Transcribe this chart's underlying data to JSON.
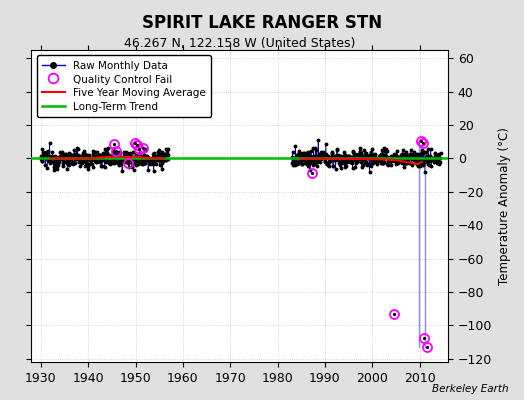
{
  "title": "SPIRIT LAKE RANGER STN",
  "subtitle": "46.267 N, 122.158 W (United States)",
  "ylabel": "Temperature Anomaly (°C)",
  "credit": "Berkeley Earth",
  "xlim": [
    1928,
    2016
  ],
  "ylim": [
    -122,
    65
  ],
  "yticks": [
    -120,
    -100,
    -80,
    -60,
    -40,
    -20,
    0,
    20,
    40,
    60
  ],
  "xticks": [
    1930,
    1940,
    1950,
    1960,
    1970,
    1980,
    1990,
    2000,
    2010
  ],
  "background_color": "#e0e0e0",
  "plot_bg_color": "#ffffff",
  "grid_color": "#c8c8c8",
  "raw_data_color": "#0000cc",
  "raw_dot_color": "#000000",
  "qc_fail_color": "#ff00ff",
  "moving_avg_color": "#ff0000",
  "trend_color": "#00bb00",
  "gap_line_color": "#8888ff",
  "seg1_start": 1930.0,
  "seg1_end": 1957.0,
  "seg2_start": 1983.0,
  "seg2_end": 2014.5,
  "noise_std": 2.8,
  "qc_fail_points_seg1": [
    [
      1945.4,
      8.5
    ],
    [
      1945.9,
      4.5
    ],
    [
      1948.3,
      -3.0
    ],
    [
      1949.8,
      9.5
    ],
    [
      1950.3,
      8.0
    ],
    [
      1950.8,
      5.5
    ],
    [
      1951.5,
      6.5
    ]
  ],
  "qc_fail_points_seg2": [
    [
      1987.3,
      -8.5
    ],
    [
      2004.5,
      -93.0
    ],
    [
      2010.3,
      10.5
    ],
    [
      2010.8,
      9.5
    ],
    [
      2011.0,
      -107.5
    ],
    [
      2011.5,
      -113.0
    ]
  ],
  "ma_x1": [
    1932,
    1935,
    1938,
    1941,
    1944,
    1946,
    1948,
    1950,
    1952,
    1954,
    1956
  ],
  "ma_y1": [
    0.2,
    0.0,
    -0.1,
    0.3,
    0.8,
    1.2,
    0.8,
    1.2,
    0.5,
    0.2,
    0.0
  ],
  "ma_x2": [
    1985,
    1989,
    1993,
    1997,
    2001,
    2004,
    2006,
    2008,
    2009.5,
    2010.5
  ],
  "ma_y2": [
    -0.2,
    0.0,
    -0.2,
    -0.3,
    -0.5,
    -0.8,
    -1.5,
    -2.5,
    -3.5,
    -2.0
  ],
  "trend_line_x": [
    1928,
    2016
  ],
  "trend_line_y": [
    0.3,
    0.3
  ],
  "gap_lines": [
    {
      "x": [
        2009.8,
        2009.8
      ],
      "y": [
        8.0,
        -113.0
      ]
    },
    {
      "x": [
        2011.2,
        2011.2
      ],
      "y": [
        4.0,
        -113.0
      ]
    }
  ],
  "seed": 12345,
  "figsize": [
    5.24,
    4.0
  ],
  "dpi": 100
}
